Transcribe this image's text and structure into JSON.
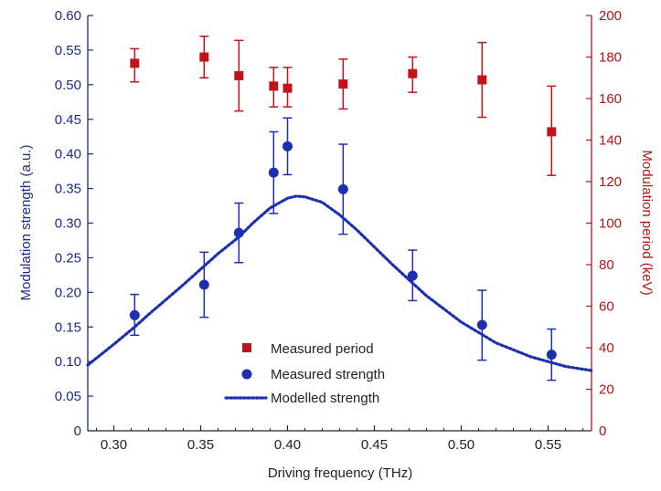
{
  "chart_data": {
    "type": "scatter",
    "xlabel": "Driving frequency (THz)",
    "ylabel_left": "Modulation strength (a.u.)",
    "ylabel_right": "Modulation period (keV)",
    "xlim": [
      0.285,
      0.575
    ],
    "ylim_left": [
      0,
      0.6
    ],
    "ylim_right": [
      0,
      200
    ],
    "x_ticks": [
      "0.30",
      "0.35",
      "0.40",
      "0.45",
      "0.50",
      "0.55"
    ],
    "y_left_ticks": [
      "0",
      "0.05",
      "0.10",
      "0.15",
      "0.20",
      "0.25",
      "0.30",
      "0.35",
      "0.40",
      "0.45",
      "0.50",
      "0.55",
      "0.60"
    ],
    "y_right_ticks": [
      "0",
      "20",
      "40",
      "60",
      "80",
      "100",
      "120",
      "140",
      "160",
      "180",
      "200"
    ],
    "grid": false,
    "legend_position": "bottom-center",
    "colors": {
      "left_axis": "#1a2a8c",
      "right_axis": "#b01616",
      "period": "#c0141c",
      "strength": "#1c2fb0",
      "model": "#1c2fb0"
    },
    "series": [
      {
        "name": "Measured period",
        "axis": "right",
        "marker": "square",
        "points": [
          {
            "x": 0.312,
            "y": 177,
            "ylo": 168,
            "yhi": 184
          },
          {
            "x": 0.352,
            "y": 180,
            "ylo": 170,
            "yhi": 190
          },
          {
            "x": 0.372,
            "y": 171,
            "ylo": 154,
            "yhi": 188
          },
          {
            "x": 0.392,
            "y": 166,
            "ylo": 156,
            "yhi": 175
          },
          {
            "x": 0.4,
            "y": 165,
            "ylo": 156,
            "yhi": 175
          },
          {
            "x": 0.432,
            "y": 167,
            "ylo": 155,
            "yhi": 179
          },
          {
            "x": 0.472,
            "y": 172,
            "ylo": 163,
            "yhi": 180
          },
          {
            "x": 0.512,
            "y": 169,
            "ylo": 151,
            "yhi": 187
          },
          {
            "x": 0.552,
            "y": 144,
            "ylo": 123,
            "yhi": 166
          }
        ]
      },
      {
        "name": "Measured strength",
        "axis": "left",
        "marker": "circle",
        "points": [
          {
            "x": 0.312,
            "y": 0.167,
            "ylo": 0.138,
            "yhi": 0.197
          },
          {
            "x": 0.352,
            "y": 0.211,
            "ylo": 0.164,
            "yhi": 0.258
          },
          {
            "x": 0.372,
            "y": 0.286,
            "ylo": 0.243,
            "yhi": 0.329
          },
          {
            "x": 0.392,
            "y": 0.373,
            "ylo": 0.314,
            "yhi": 0.432
          },
          {
            "x": 0.4,
            "y": 0.411,
            "ylo": 0.37,
            "yhi": 0.452
          },
          {
            "x": 0.432,
            "y": 0.349,
            "ylo": 0.284,
            "yhi": 0.414
          },
          {
            "x": 0.472,
            "y": 0.224,
            "ylo": 0.188,
            "yhi": 0.261
          },
          {
            "x": 0.512,
            "y": 0.153,
            "ylo": 0.102,
            "yhi": 0.203
          },
          {
            "x": 0.552,
            "y": 0.11,
            "ylo": 0.073,
            "yhi": 0.147
          }
        ]
      },
      {
        "name": "Modelled strength",
        "axis": "left",
        "line_style": "dotted",
        "x": [
          0.285,
          0.3,
          0.312,
          0.32,
          0.34,
          0.36,
          0.372,
          0.38,
          0.39,
          0.4,
          0.405,
          0.41,
          0.42,
          0.43,
          0.44,
          0.46,
          0.48,
          0.5,
          0.52,
          0.54,
          0.56,
          0.575
        ],
        "y": [
          0.095,
          0.125,
          0.15,
          0.168,
          0.211,
          0.256,
          0.28,
          0.3,
          0.322,
          0.336,
          0.339,
          0.338,
          0.33,
          0.312,
          0.29,
          0.241,
          0.195,
          0.157,
          0.127,
          0.107,
          0.093,
          0.087
        ]
      }
    ]
  }
}
